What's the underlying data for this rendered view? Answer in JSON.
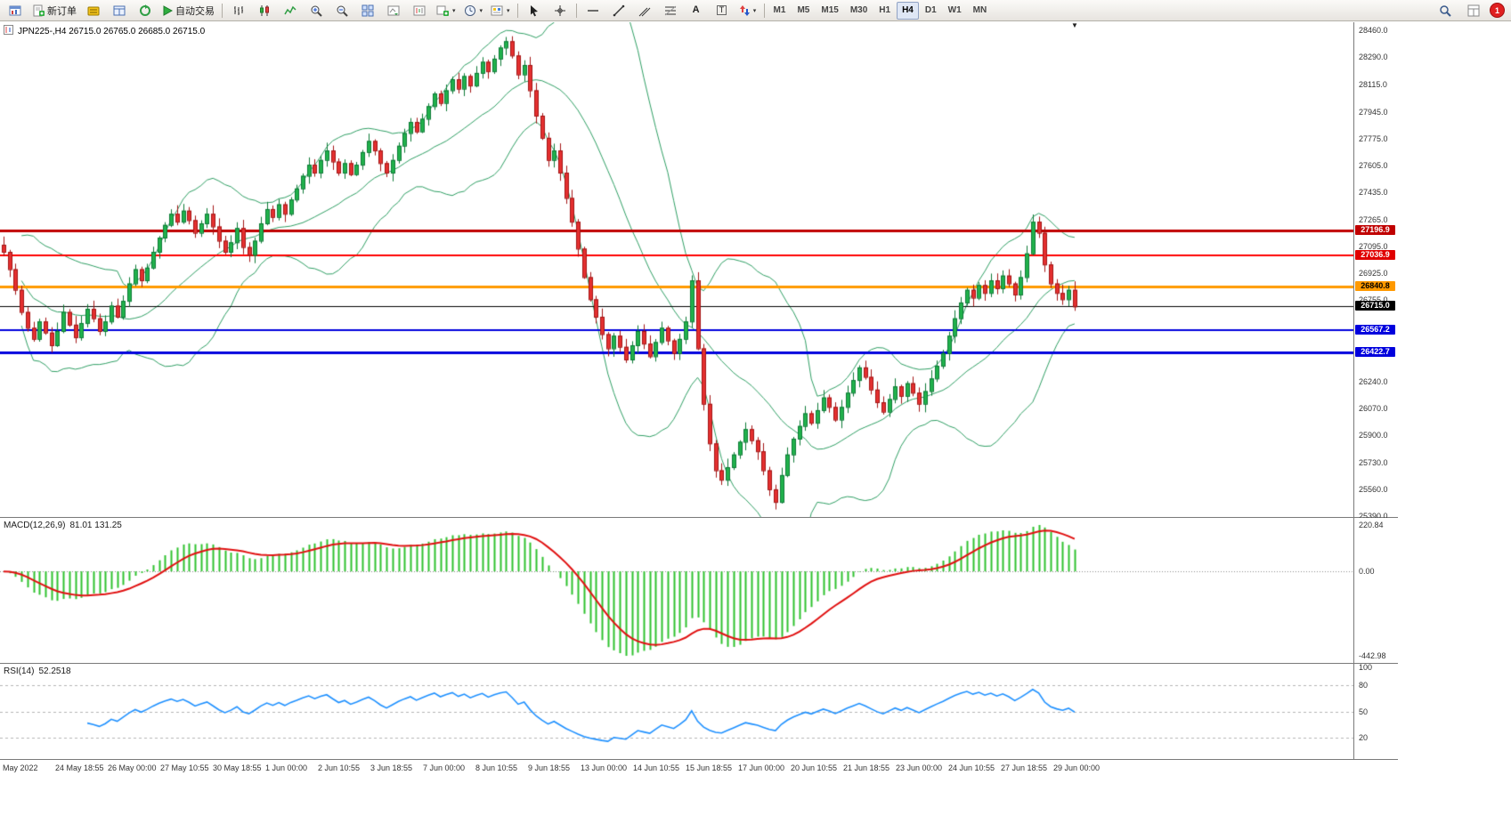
{
  "toolbar": {
    "new_order_label": "新订单",
    "auto_trading_label": "自动交易",
    "timeframes": [
      "M1",
      "M5",
      "M15",
      "M30",
      "H1",
      "H4",
      "D1",
      "W1",
      "MN"
    ],
    "active_timeframe": "H4",
    "notification_count": "1"
  },
  "chart": {
    "symbol": "JPN225-",
    "period": "H4",
    "title": "JPN225-,H4 26715.0 26765.0 26685.0 26715.0"
  },
  "price_axis": {
    "labels": [
      28460.0,
      28290.0,
      28115.0,
      27945.0,
      27775.0,
      27605.0,
      27435.0,
      27265.0,
      27095.0,
      26925.0,
      26755.0,
      26240.0,
      26070.0,
      25900.0,
      25730.0,
      25560.0,
      25390.0
    ]
  },
  "macd_panel": {
    "label": "MACD(12,26,9)",
    "values": "81.01 131.25",
    "axis": [
      "220.84",
      "0.00",
      "-442.98"
    ]
  },
  "rsi_panel": {
    "label": "RSI(14)",
    "value": "52.2518",
    "axis": [
      "100",
      "80",
      "50",
      "20"
    ]
  },
  "time_axis": {
    "labels": [
      "May 2022",
      "24 May 18:55",
      "26 May 00:00",
      "27 May 10:55",
      "30 May 18:55",
      "1 Jun 00:00",
      "2 Jun 10:55",
      "3 Jun 18:55",
      "7 Jun 00:00",
      "8 Jun 10:55",
      "9 Jun 18:55",
      "13 Jun 00:00",
      "14 Jun 10:55",
      "15 Jun 18:55",
      "17 Jun 00:00",
      "20 Jun 10:55",
      "21 Jun 18:55",
      "23 Jun 00:00",
      "24 Jun 10:55",
      "27 Jun 18:55",
      "29 Jun 00:00"
    ]
  },
  "chart_data": {
    "type": "candlestick",
    "symbol": "JPN225-",
    "timeframe": "H4",
    "ohlc_current": {
      "open": 26715.0,
      "high": 26765.0,
      "low": 26685.0,
      "close": 26715.0
    },
    "price_axis_range": [
      25390,
      28460
    ],
    "closes": [
      27060,
      26950,
      26820,
      26680,
      26580,
      26510,
      26620,
      26550,
      26470,
      26560,
      26680,
      26600,
      26520,
      26610,
      26700,
      26640,
      26560,
      26620,
      26720,
      26650,
      26750,
      26860,
      26950,
      26880,
      26960,
      27060,
      27150,
      27230,
      27300,
      27250,
      27320,
      27260,
      27180,
      27240,
      27300,
      27220,
      27130,
      27060,
      27120,
      27210,
      27090,
      27040,
      27130,
      27240,
      27330,
      27280,
      27360,
      27300,
      27390,
      27460,
      27540,
      27610,
      27560,
      27640,
      27700,
      27630,
      27560,
      27620,
      27550,
      27610,
      27690,
      27760,
      27700,
      27620,
      27560,
      27640,
      27730,
      27810,
      27880,
      27820,
      27900,
      27980,
      28060,
      28000,
      28080,
      28150,
      28090,
      28170,
      28110,
      28190,
      28260,
      28200,
      28280,
      28350,
      28390,
      28300,
      28180,
      28240,
      28080,
      27920,
      27780,
      27640,
      27700,
      27560,
      27400,
      27250,
      27080,
      26900,
      26760,
      26650,
      26540,
      26450,
      26530,
      26460,
      26380,
      26470,
      26560,
      26480,
      26400,
      26490,
      26580,
      26500,
      26420,
      26510,
      26620,
      26880,
      26450,
      26100,
      25850,
      25680,
      25620,
      25700,
      25780,
      25860,
      25940,
      25870,
      25800,
      25680,
      25560,
      25480,
      25650,
      25780,
      25880,
      25960,
      26040,
      25980,
      26060,
      26140,
      26080,
      26000,
      26080,
      26170,
      26250,
      26330,
      26270,
      26190,
      26110,
      26050,
      26130,
      26210,
      26150,
      26230,
      26170,
      26100,
      26180,
      26260,
      26340,
      26420,
      26530,
      26640,
      26740,
      26820,
      26770,
      26850,
      26800,
      26880,
      26830,
      26910,
      26860,
      26790,
      26900,
      27050,
      27250,
      27180,
      26980,
      26860,
      26800,
      26760,
      26820,
      26715
    ],
    "horizontal_lines": [
      {
        "value": 27196.9,
        "color": "#c00000",
        "width": 3,
        "tag_bg": "#c00000",
        "tag_fg": "#ffffff"
      },
      {
        "value": 27036.9,
        "color": "#ff0000",
        "width": 2,
        "tag_bg": "#e00000",
        "tag_fg": "#ffffff"
      },
      {
        "value": 26840.8,
        "color": "#ff9900",
        "width": 3,
        "tag_bg": "#ff9900",
        "tag_fg": "#000000"
      },
      {
        "value": 26715.0,
        "color": "#000000",
        "width": 1,
        "tag_bg": "#000000",
        "tag_fg": "#ffffff"
      },
      {
        "value": 26567.2,
        "color": "#0000dd",
        "width": 2,
        "tag_bg": "#0000dd",
        "tag_fg": "#ffffff"
      },
      {
        "value": 26422.7,
        "color": "#0000dd",
        "width": 3,
        "tag_bg": "#0000dd",
        "tag_fg": "#ffffff"
      }
    ],
    "indicators": {
      "bollinger": {
        "period": 20,
        "deviation": 2,
        "color": "#2e9e63"
      },
      "macd": {
        "fast": 12,
        "slow": 26,
        "signal": 9,
        "value": 81.01,
        "signal_value": 131.25,
        "histogram_color": "#2fc32f",
        "signal_color": "#e01010",
        "axis_max": 220.84,
        "axis_min": -442.98
      },
      "rsi": {
        "period": 14,
        "value": 52.2518,
        "color": "#1e90ff",
        "levels": [
          80,
          50,
          20
        ]
      }
    }
  }
}
